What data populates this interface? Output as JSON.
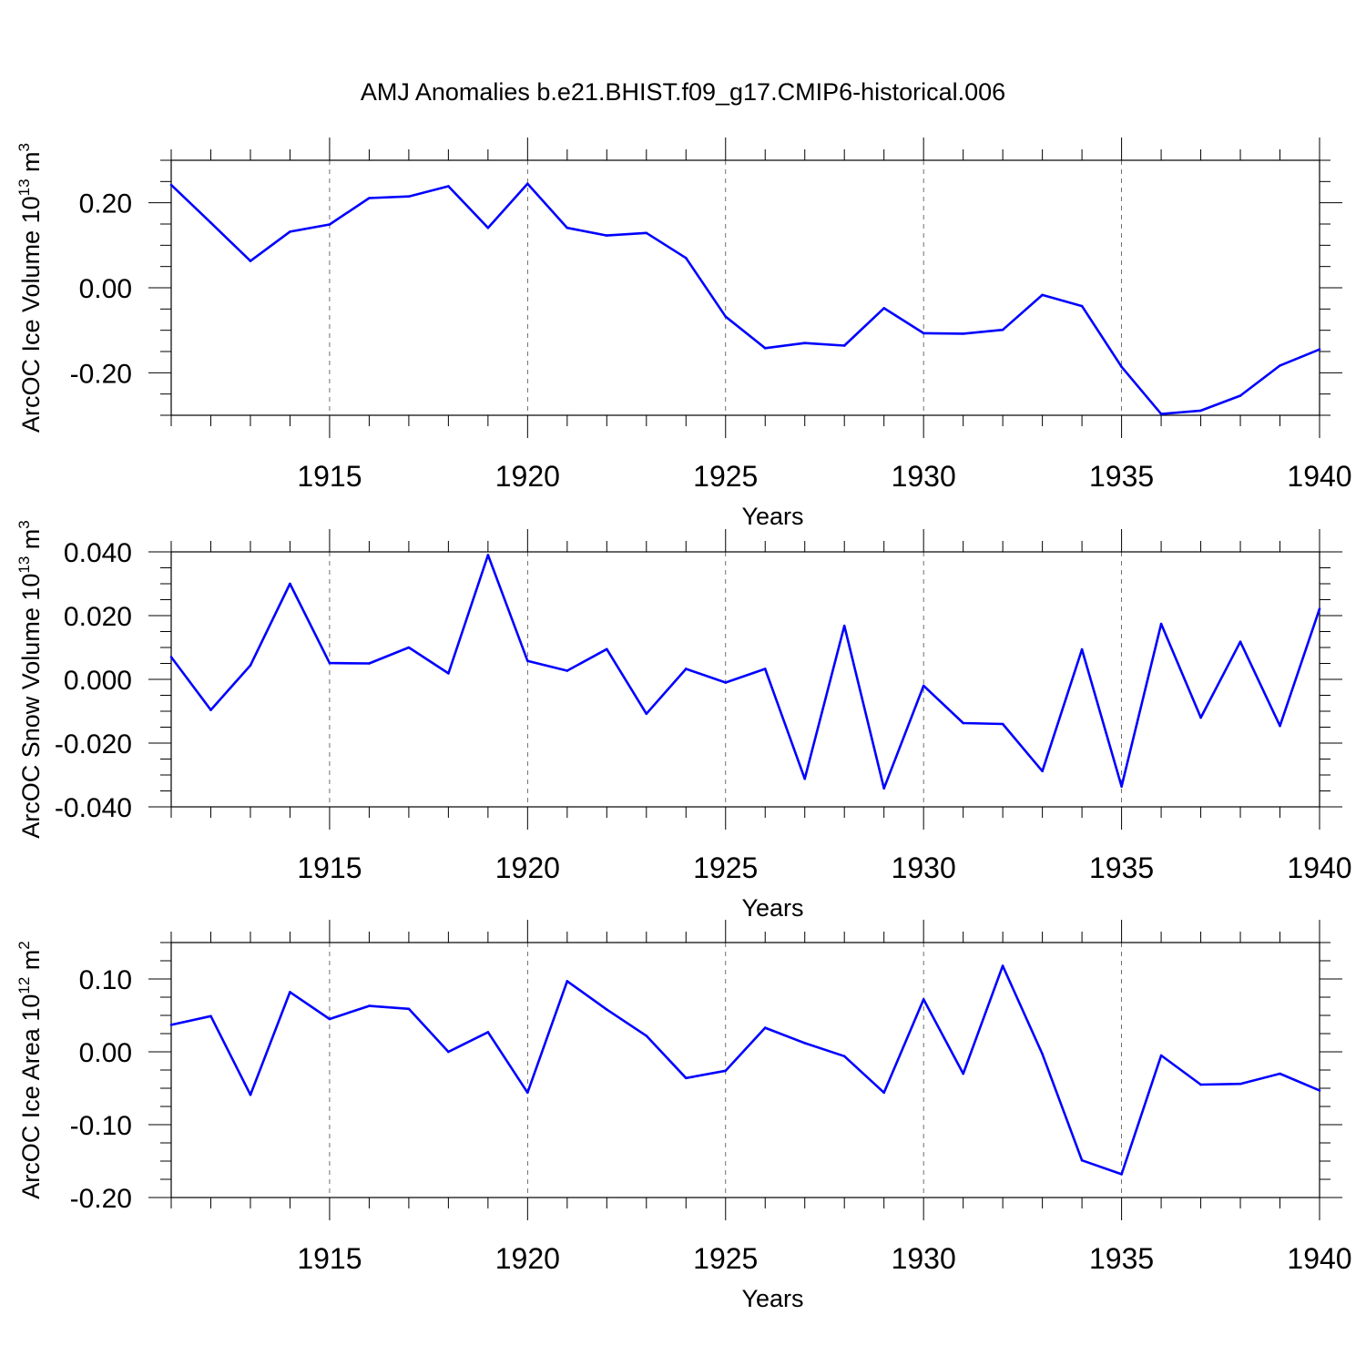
{
  "title": "AMJ Anomalies b.e21.BHIST.f09_g17.CMIP6-historical.006",
  "line_color": "#0000ff",
  "chart_data": [
    {
      "type": "line",
      "title": "AMJ Anomalies b.e21.BHIST.f09_g17.CMIP6-historical.006",
      "xlabel": "Years",
      "ylabel_main": "ArcOC Ice Volume 10",
      "ylabel_exp": "13",
      "ylabel_unit": " m",
      "ylabel_unit_exp": "3",
      "xlim": [
        1911,
        1940
      ],
      "ylim": [
        -0.3,
        0.3
      ],
      "yticks": [
        -0.2,
        0.0,
        0.2
      ],
      "ytick_labels": [
        "-0.20",
        "0.00",
        "0.20"
      ],
      "xticks": [
        1915,
        1920,
        1925,
        1930,
        1935,
        1940
      ],
      "xtick_labels": [
        "1915",
        "1920",
        "1925",
        "1930",
        "1935",
        "1940"
      ],
      "x": [
        1911,
        1912,
        1913,
        1914,
        1915,
        1916,
        1917,
        1918,
        1919,
        1920,
        1921,
        1922,
        1923,
        1924,
        1925,
        1926,
        1927,
        1928,
        1929,
        1930,
        1931,
        1932,
        1933,
        1934,
        1935,
        1936,
        1937,
        1938,
        1939,
        1940
      ],
      "values": [
        0.242,
        0.153,
        0.063,
        0.132,
        0.149,
        0.211,
        0.215,
        0.239,
        0.141,
        0.245,
        0.141,
        0.123,
        0.129,
        0.07,
        -0.068,
        -0.142,
        -0.13,
        -0.136,
        -0.048,
        -0.107,
        -0.108,
        -0.099,
        -0.017,
        -0.043,
        -0.186,
        -0.297,
        -0.289,
        -0.254,
        -0.183,
        -0.145
      ]
    },
    {
      "type": "line",
      "xlabel": "Years",
      "ylabel_main": "ArcOC Snow Volume 10",
      "ylabel_exp": "13",
      "ylabel_unit": " m",
      "ylabel_unit_exp": "3",
      "xlim": [
        1911,
        1940
      ],
      "ylim": [
        -0.04,
        0.04
      ],
      "yticks": [
        -0.04,
        -0.02,
        0.0,
        0.02,
        0.04
      ],
      "ytick_labels": [
        "-0.040",
        "-0.020",
        "0.000",
        "0.020",
        "0.040"
      ],
      "xticks": [
        1915,
        1920,
        1925,
        1930,
        1935,
        1940
      ],
      "xtick_labels": [
        "1915",
        "1920",
        "1925",
        "1930",
        "1935",
        "1940"
      ],
      "x": [
        1911,
        1912,
        1913,
        1914,
        1915,
        1916,
        1917,
        1918,
        1919,
        1920,
        1921,
        1922,
        1923,
        1924,
        1925,
        1926,
        1927,
        1928,
        1929,
        1930,
        1931,
        1932,
        1933,
        1934,
        1935,
        1936,
        1937,
        1938,
        1939,
        1940
      ],
      "values": [
        0.007,
        -0.0096,
        0.0044,
        0.03,
        0.0051,
        0.005,
        0.01,
        0.0019,
        0.039,
        0.0058,
        0.0027,
        0.0095,
        -0.0108,
        0.0033,
        -0.001,
        0.0033,
        -0.0312,
        0.0168,
        -0.0342,
        -0.002,
        -0.0137,
        -0.014,
        -0.0288,
        0.0094,
        -0.0336,
        0.0174,
        -0.012,
        0.0118,
        -0.0146,
        0.0221
      ]
    },
    {
      "type": "line",
      "xlabel": "Years",
      "ylabel_main": "ArcOC Ice Area 10",
      "ylabel_exp": "12",
      "ylabel_unit": " m",
      "ylabel_unit_exp": "2",
      "xlim": [
        1911,
        1940
      ],
      "ylim": [
        -0.2,
        0.15
      ],
      "yticks": [
        -0.2,
        -0.1,
        0.0,
        0.1
      ],
      "ytick_labels": [
        "-0.20",
        "-0.10",
        "0.00",
        "0.10"
      ],
      "xticks": [
        1915,
        1920,
        1925,
        1930,
        1935,
        1940
      ],
      "xtick_labels": [
        "1915",
        "1920",
        "1925",
        "1930",
        "1935",
        "1940"
      ],
      "x": [
        1911,
        1912,
        1913,
        1914,
        1915,
        1916,
        1917,
        1918,
        1919,
        1920,
        1921,
        1922,
        1923,
        1924,
        1925,
        1926,
        1927,
        1928,
        1929,
        1930,
        1931,
        1932,
        1933,
        1934,
        1935,
        1936,
        1937,
        1938,
        1939,
        1940
      ],
      "values": [
        0.037,
        0.049,
        -0.059,
        0.082,
        0.045,
        0.063,
        0.059,
        0.0,
        0.027,
        -0.056,
        0.097,
        0.058,
        0.022,
        -0.036,
        -0.026,
        0.033,
        0.012,
        -0.006,
        -0.056,
        0.072,
        -0.03,
        0.118,
        -0.003,
        -0.149,
        -0.168,
        -0.005,
        -0.045,
        -0.044,
        -0.03,
        -0.053
      ]
    }
  ]
}
